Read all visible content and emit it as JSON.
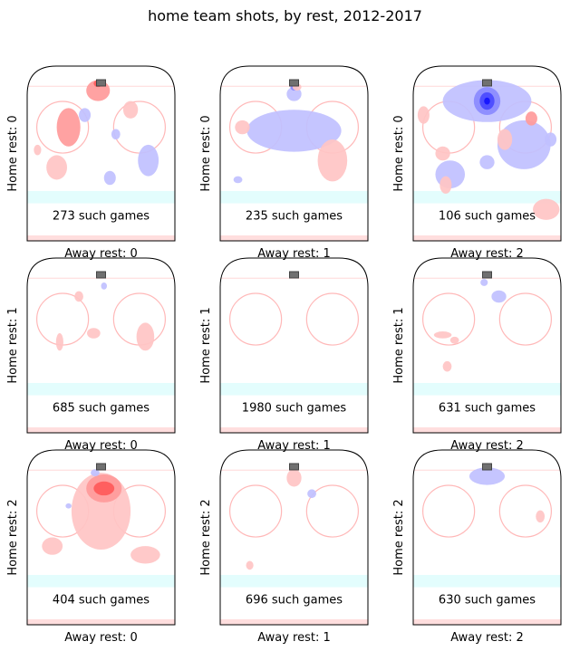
{
  "figure": {
    "title": "home team shots, by rest, 2012-2017"
  },
  "chart_data": [
    {
      "type": "heatmap",
      "row": 0,
      "col": 0,
      "ylabel": "Home rest: 0",
      "xlabel": "Away rest: 0",
      "annotation": "273 such games",
      "blobs": [
        {
          "sign": "pos",
          "x": 0.48,
          "y": 0.14,
          "rx": 0.08,
          "ry": 0.06,
          "level": 2
        },
        {
          "sign": "pos",
          "x": 0.48,
          "y": 0.1,
          "rx": 0.03,
          "ry": 0.02,
          "level": 3
        },
        {
          "sign": "pos",
          "x": 0.28,
          "y": 0.35,
          "rx": 0.08,
          "ry": 0.11,
          "level": 2
        },
        {
          "sign": "pos",
          "x": 0.7,
          "y": 0.25,
          "rx": 0.05,
          "ry": 0.05,
          "level": 1
        },
        {
          "sign": "pos",
          "x": 0.2,
          "y": 0.58,
          "rx": 0.07,
          "ry": 0.07,
          "level": 1
        },
        {
          "sign": "pos",
          "x": 0.07,
          "y": 0.48,
          "rx": 0.025,
          "ry": 0.03,
          "level": 1
        },
        {
          "sign": "neg",
          "x": 0.39,
          "y": 0.28,
          "rx": 0.04,
          "ry": 0.04,
          "level": 1
        },
        {
          "sign": "neg",
          "x": 0.6,
          "y": 0.39,
          "rx": 0.03,
          "ry": 0.03,
          "level": 1
        },
        {
          "sign": "neg",
          "x": 0.82,
          "y": 0.54,
          "rx": 0.07,
          "ry": 0.09,
          "level": 1
        },
        {
          "sign": "neg",
          "x": 0.56,
          "y": 0.64,
          "rx": 0.04,
          "ry": 0.04,
          "level": 1
        }
      ]
    },
    {
      "type": "heatmap",
      "row": 0,
      "col": 1,
      "ylabel": "Home rest: 0",
      "xlabel": "Away rest: 1",
      "annotation": "235 such games",
      "blobs": [
        {
          "sign": "neg",
          "x": 0.5,
          "y": 0.37,
          "rx": 0.32,
          "ry": 0.12,
          "level": 1
        },
        {
          "sign": "neg",
          "x": 0.5,
          "y": 0.16,
          "rx": 0.05,
          "ry": 0.04,
          "level": 1
        },
        {
          "sign": "neg",
          "x": 0.5,
          "y": 0.12,
          "rx": 0.025,
          "ry": 0.02,
          "level": 2
        },
        {
          "sign": "pos",
          "x": 0.52,
          "y": 0.12,
          "rx": 0.03,
          "ry": 0.02,
          "level": 1
        },
        {
          "sign": "pos",
          "x": 0.15,
          "y": 0.35,
          "rx": 0.05,
          "ry": 0.04,
          "level": 1
        },
        {
          "sign": "pos",
          "x": 0.76,
          "y": 0.54,
          "rx": 0.1,
          "ry": 0.12,
          "level": 1
        },
        {
          "sign": "neg",
          "x": 0.12,
          "y": 0.65,
          "rx": 0.03,
          "ry": 0.02,
          "level": 1
        }
      ]
    },
    {
      "type": "heatmap",
      "row": 0,
      "col": 2,
      "ylabel": "Home rest: 0",
      "xlabel": "Away rest: 2",
      "annotation": "106 such games",
      "blobs": [
        {
          "sign": "neg",
          "x": 0.5,
          "y": 0.2,
          "rx": 0.3,
          "ry": 0.12,
          "level": 1
        },
        {
          "sign": "neg",
          "x": 0.5,
          "y": 0.2,
          "rx": 0.09,
          "ry": 0.08,
          "level": 2
        },
        {
          "sign": "neg",
          "x": 0.5,
          "y": 0.2,
          "rx": 0.05,
          "ry": 0.05,
          "level": 3
        },
        {
          "sign": "neg",
          "x": 0.5,
          "y": 0.2,
          "rx": 0.02,
          "ry": 0.02,
          "level": 4
        },
        {
          "sign": "neg",
          "x": 0.75,
          "y": 0.45,
          "rx": 0.18,
          "ry": 0.14,
          "level": 1
        },
        {
          "sign": "neg",
          "x": 0.25,
          "y": 0.62,
          "rx": 0.1,
          "ry": 0.08,
          "level": 1
        },
        {
          "sign": "neg",
          "x": 0.5,
          "y": 0.55,
          "rx": 0.05,
          "ry": 0.04,
          "level": 1
        },
        {
          "sign": "neg",
          "x": 0.93,
          "y": 0.42,
          "rx": 0.04,
          "ry": 0.04,
          "level": 1
        },
        {
          "sign": "pos",
          "x": 0.07,
          "y": 0.28,
          "rx": 0.04,
          "ry": 0.05,
          "level": 1
        },
        {
          "sign": "pos",
          "x": 0.8,
          "y": 0.3,
          "rx": 0.04,
          "ry": 0.04,
          "level": 2
        },
        {
          "sign": "pos",
          "x": 0.62,
          "y": 0.42,
          "rx": 0.05,
          "ry": 0.06,
          "level": 1
        },
        {
          "sign": "pos",
          "x": 0.2,
          "y": 0.5,
          "rx": 0.05,
          "ry": 0.04,
          "level": 1
        },
        {
          "sign": "pos",
          "x": 0.22,
          "y": 0.68,
          "rx": 0.04,
          "ry": 0.05,
          "level": 1
        },
        {
          "sign": "pos",
          "x": 0.9,
          "y": 0.82,
          "rx": 0.09,
          "ry": 0.06,
          "level": 1
        }
      ]
    },
    {
      "type": "heatmap",
      "row": 1,
      "col": 0,
      "ylabel": "Home rest: 1",
      "xlabel": "Away rest: 0",
      "annotation": "685 such games",
      "blobs": [
        {
          "sign": "pos",
          "x": 0.35,
          "y": 0.22,
          "rx": 0.03,
          "ry": 0.03,
          "level": 1
        },
        {
          "sign": "neg",
          "x": 0.52,
          "y": 0.16,
          "rx": 0.02,
          "ry": 0.02,
          "level": 1
        },
        {
          "sign": "pos",
          "x": 0.22,
          "y": 0.48,
          "rx": 0.025,
          "ry": 0.05,
          "level": 1
        },
        {
          "sign": "pos",
          "x": 0.45,
          "y": 0.43,
          "rx": 0.045,
          "ry": 0.03,
          "level": 1
        },
        {
          "sign": "pos",
          "x": 0.8,
          "y": 0.45,
          "rx": 0.06,
          "ry": 0.08,
          "level": 1
        }
      ]
    },
    {
      "type": "heatmap",
      "row": 1,
      "col": 1,
      "ylabel": "Home rest: 1",
      "xlabel": "Away rest: 1",
      "annotation": "1980 such games",
      "blobs": []
    },
    {
      "type": "heatmap",
      "row": 1,
      "col": 2,
      "ylabel": "Home rest: 1",
      "xlabel": "Away rest: 2",
      "annotation": "631 such games",
      "blobs": [
        {
          "sign": "neg",
          "x": 0.58,
          "y": 0.22,
          "rx": 0.05,
          "ry": 0.035,
          "level": 1
        },
        {
          "sign": "neg",
          "x": 0.48,
          "y": 0.14,
          "rx": 0.025,
          "ry": 0.02,
          "level": 1
        },
        {
          "sign": "pos",
          "x": 0.2,
          "y": 0.44,
          "rx": 0.06,
          "ry": 0.02,
          "level": 1
        },
        {
          "sign": "pos",
          "x": 0.28,
          "y": 0.47,
          "rx": 0.03,
          "ry": 0.02,
          "level": 1
        },
        {
          "sign": "pos",
          "x": 0.23,
          "y": 0.62,
          "rx": 0.03,
          "ry": 0.03,
          "level": 1
        }
      ]
    },
    {
      "type": "heatmap",
      "row": 2,
      "col": 0,
      "ylabel": "Home rest: 2",
      "xlabel": "Away rest: 0",
      "annotation": "404 such games",
      "blobs": [
        {
          "sign": "pos",
          "x": 0.5,
          "y": 0.35,
          "rx": 0.2,
          "ry": 0.22,
          "level": 1
        },
        {
          "sign": "pos",
          "x": 0.52,
          "y": 0.22,
          "rx": 0.12,
          "ry": 0.08,
          "level": 2
        },
        {
          "sign": "pos",
          "x": 0.52,
          "y": 0.22,
          "rx": 0.07,
          "ry": 0.04,
          "level": 3
        },
        {
          "sign": "pos",
          "x": 0.17,
          "y": 0.55,
          "rx": 0.07,
          "ry": 0.05,
          "level": 1
        },
        {
          "sign": "pos",
          "x": 0.8,
          "y": 0.6,
          "rx": 0.1,
          "ry": 0.05,
          "level": 1
        },
        {
          "sign": "neg",
          "x": 0.28,
          "y": 0.32,
          "rx": 0.02,
          "ry": 0.015,
          "level": 1
        },
        {
          "sign": "neg",
          "x": 0.46,
          "y": 0.13,
          "rx": 0.03,
          "ry": 0.02,
          "level": 1
        }
      ]
    },
    {
      "type": "heatmap",
      "row": 2,
      "col": 1,
      "ylabel": "Home rest: 2",
      "xlabel": "Away rest: 1",
      "annotation": "696 such games",
      "blobs": [
        {
          "sign": "pos",
          "x": 0.5,
          "y": 0.16,
          "rx": 0.05,
          "ry": 0.05,
          "level": 1
        },
        {
          "sign": "neg",
          "x": 0.62,
          "y": 0.25,
          "rx": 0.03,
          "ry": 0.025,
          "level": 1
        },
        {
          "sign": "pos",
          "x": 0.2,
          "y": 0.66,
          "rx": 0.025,
          "ry": 0.025,
          "level": 1
        }
      ]
    },
    {
      "type": "heatmap",
      "row": 2,
      "col": 2,
      "ylabel": "Home rest: 2",
      "xlabel": "Away rest: 2",
      "annotation": "630 such games",
      "blobs": [
        {
          "sign": "neg",
          "x": 0.5,
          "y": 0.15,
          "rx": 0.12,
          "ry": 0.05,
          "level": 1
        },
        {
          "sign": "pos",
          "x": 0.86,
          "y": 0.38,
          "rx": 0.03,
          "ry": 0.035,
          "level": 1
        }
      ]
    }
  ],
  "colors": {
    "pos_levels": [
      "#ffc4c4",
      "#ff9a9a",
      "#ff5a5a"
    ],
    "neg_levels": [
      "#c0c0ff",
      "#8a8aff",
      "#4a4aff",
      "#1212ff"
    ],
    "circle": "#ffb8b8",
    "crease": "#ccfbfb",
    "goal_line": "#ffd8d8",
    "net": "#707070",
    "frame": "#000000"
  }
}
